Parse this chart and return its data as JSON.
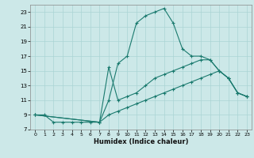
{
  "title": "",
  "xlabel": "Humidex (Indice chaleur)",
  "bg_color": "#cce8e8",
  "line_color": "#1a7a6e",
  "marker": "+",
  "xlim": [
    -0.5,
    23.5
  ],
  "ylim": [
    7,
    24
  ],
  "yticks": [
    7,
    9,
    11,
    13,
    15,
    17,
    19,
    21,
    23
  ],
  "xticks": [
    0,
    1,
    2,
    3,
    4,
    5,
    6,
    7,
    8,
    9,
    10,
    11,
    12,
    13,
    14,
    15,
    16,
    17,
    18,
    19,
    20,
    21,
    22,
    23
  ],
  "lines": [
    [
      [
        0,
        9
      ],
      [
        1,
        9
      ],
      [
        2,
        8
      ],
      [
        3,
        8
      ],
      [
        4,
        8
      ],
      [
        5,
        8
      ],
      [
        6,
        8
      ],
      [
        7,
        8
      ],
      [
        8,
        11
      ],
      [
        9,
        16
      ],
      [
        10,
        17
      ],
      [
        11,
        21.5
      ],
      [
        12,
        22.5
      ],
      [
        13,
        23
      ],
      [
        14,
        23.5
      ],
      [
        15,
        21.5
      ],
      [
        16,
        18
      ],
      [
        17,
        17
      ],
      [
        18,
        17
      ],
      [
        19,
        16.5
      ],
      [
        20,
        15
      ],
      [
        21,
        14
      ],
      [
        22,
        12
      ],
      [
        23,
        11.5
      ]
    ],
    [
      [
        0,
        9
      ],
      [
        7,
        8
      ],
      [
        8,
        15.5
      ],
      [
        9,
        11
      ],
      [
        10,
        11.5
      ],
      [
        11,
        12
      ],
      [
        12,
        13
      ],
      [
        13,
        14
      ],
      [
        14,
        14.5
      ],
      [
        15,
        15
      ],
      [
        16,
        15.5
      ],
      [
        17,
        16
      ],
      [
        18,
        16.5
      ],
      [
        19,
        16.5
      ],
      [
        20,
        15
      ],
      [
        21,
        14
      ],
      [
        22,
        12
      ],
      [
        23,
        11.5
      ]
    ],
    [
      [
        0,
        9
      ],
      [
        7,
        8
      ],
      [
        8,
        9
      ],
      [
        9,
        9.5
      ],
      [
        10,
        10
      ],
      [
        11,
        10.5
      ],
      [
        12,
        11
      ],
      [
        13,
        11.5
      ],
      [
        14,
        12
      ],
      [
        15,
        12.5
      ],
      [
        16,
        13
      ],
      [
        17,
        13.5
      ],
      [
        18,
        14
      ],
      [
        19,
        14.5
      ],
      [
        20,
        15
      ],
      [
        21,
        14
      ],
      [
        22,
        12
      ],
      [
        23,
        11.5
      ]
    ]
  ]
}
